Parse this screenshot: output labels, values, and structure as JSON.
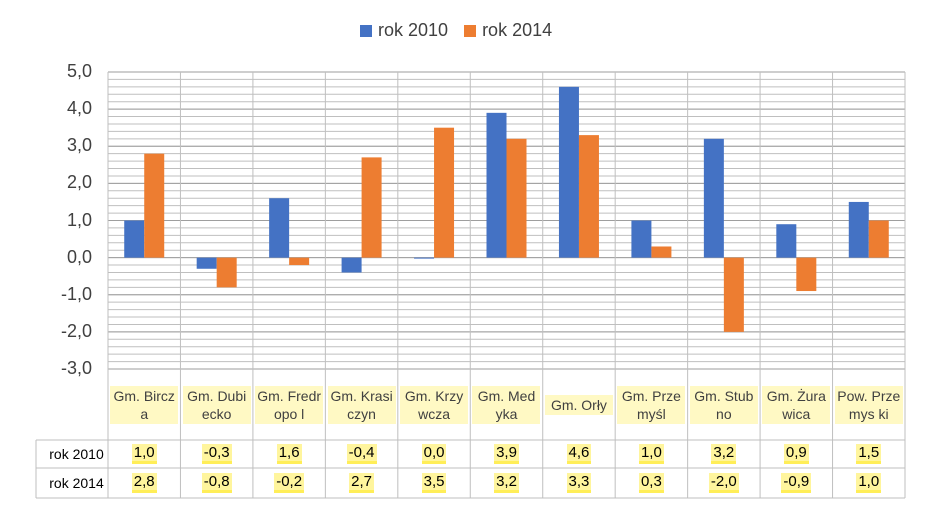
{
  "chart_data": {
    "type": "bar",
    "categories": [
      "Gm. Bircza",
      "Gm. Dubiecko",
      "Gm. Fredropo l",
      "Gm. Krasiczyn",
      "Gm. Krzywcza",
      "Gm. Medyka",
      "Gm. Orły",
      "Gm. Przemyśl",
      "Gm. Stubno",
      "Gm. Żurawica",
      "Pow. Przemys ki"
    ],
    "series": [
      {
        "name": "rok 2010",
        "color": "#4472c4",
        "values": [
          1.0,
          -0.3,
          1.6,
          -0.4,
          0.0,
          3.9,
          4.6,
          1.0,
          3.2,
          0.9,
          1.5
        ],
        "labels": [
          "1,0",
          "-0,3",
          "1,6",
          "-0,4",
          "0,0",
          "3,9",
          "4,6",
          "1,0",
          "3,2",
          "0,9",
          "1,5"
        ]
      },
      {
        "name": "rok 2014",
        "color": "#ed7d31",
        "values": [
          2.8,
          -0.8,
          -0.2,
          2.7,
          3.5,
          3.2,
          3.3,
          0.3,
          -2.0,
          -0.9,
          1.0
        ],
        "labels": [
          "2,8",
          "-0,8",
          "-0,2",
          "2,7",
          "3,5",
          "3,2",
          "3,3",
          "0,3",
          "-2,0",
          "-0,9",
          "1,0"
        ]
      }
    ],
    "ylim": [
      -3.0,
      5.0
    ],
    "yticks": [
      "5,0",
      "4,0",
      "3,0",
      "2,0",
      "1,0",
      "0,0",
      "-1,0",
      "-2,0",
      "-3,0"
    ],
    "legend_position": "top-center",
    "grid": true,
    "data_table": true
  }
}
